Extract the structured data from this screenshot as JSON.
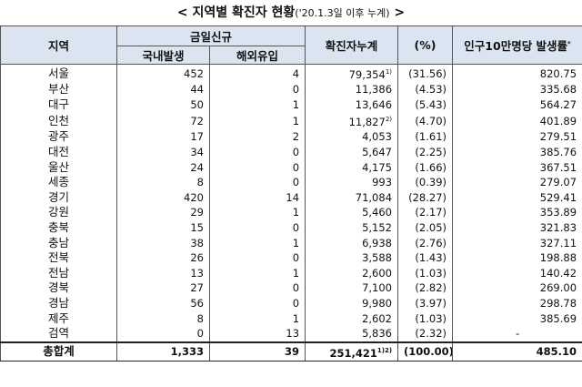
{
  "title": {
    "open": "<",
    "main": "지역별 확진자 현황",
    "sub": "('20.1.3일 이후 누계)",
    "close": ">"
  },
  "table": {
    "header": {
      "region": "지역",
      "new_group": "금일신규",
      "domestic": "국내발생",
      "overseas": "해외유입",
      "cumulative": "확진자누계",
      "pct": "(%)",
      "rate": {
        "text": "인구10만명당 발생률",
        "note": "*"
      }
    },
    "rows": [
      [
        "서울",
        "452",
        "4",
        {
          "value": "79,354",
          "note": "1)"
        },
        "(31.56)",
        "820.75"
      ],
      [
        "부산",
        "44",
        "0",
        "11,386",
        "(4.53)",
        "335.68"
      ],
      [
        "대구",
        "50",
        "1",
        "13,646",
        "(5.43)",
        "564.27"
      ],
      [
        "인천",
        "72",
        "1",
        {
          "value": "11,827",
          "note": "2)"
        },
        "(4.70)",
        "401.89"
      ],
      [
        "광주",
        "17",
        "2",
        "4,053",
        "(1.61)",
        "279.51"
      ],
      [
        "대전",
        "34",
        "0",
        "5,647",
        "(2.25)",
        "385.76"
      ],
      [
        "울산",
        "24",
        "0",
        "4,175",
        "(1.66)",
        "367.51"
      ],
      [
        "세종",
        "8",
        "0",
        "993",
        "(0.39)",
        "279.07"
      ],
      [
        "경기",
        "420",
        "14",
        "71,084",
        "(28.27)",
        "529.41"
      ],
      [
        "강원",
        "29",
        "1",
        "5,460",
        "(2.17)",
        "353.89"
      ],
      [
        "충북",
        "15",
        "0",
        "5,152",
        "(2.05)",
        "321.83"
      ],
      [
        "충남",
        "38",
        "1",
        "6,938",
        "(2.76)",
        "327.11"
      ],
      [
        "전북",
        "26",
        "0",
        "3,588",
        "(1.43)",
        "198.88"
      ],
      [
        "전남",
        "13",
        "1",
        "2,600",
        "(1.03)",
        "140.42"
      ],
      [
        "경북",
        "27",
        "0",
        "7,100",
        "(2.82)",
        "269.00"
      ],
      [
        "경남",
        "56",
        "0",
        "9,980",
        "(3.97)",
        "298.78"
      ],
      [
        "제주",
        "8",
        "1",
        "2,602",
        "(1.03)",
        "385.69"
      ],
      [
        "검역",
        "0",
        "13",
        "5,836",
        "(2.32)",
        "-"
      ]
    ],
    "total": [
      "총합계",
      "1,333",
      "39",
      {
        "value": "251,421",
        "note": "1)2)"
      },
      "(100.00)",
      "485.10"
    ]
  }
}
